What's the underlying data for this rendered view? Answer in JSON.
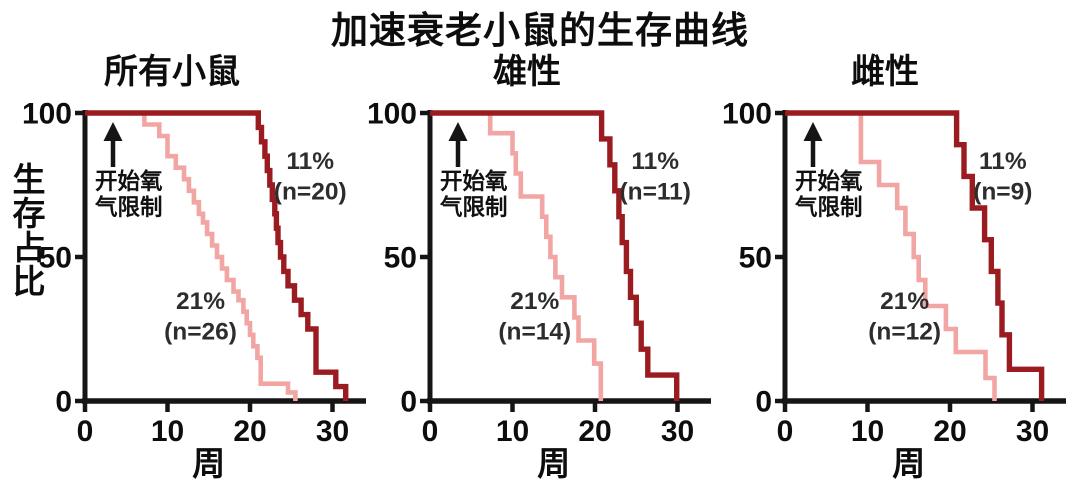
{
  "title": "加速衰老小鼠的生存曲线",
  "y_axis_label": "生存占比",
  "x_axis_label": "周",
  "annotation": {
    "icon": "up-arrow-icon",
    "lines": [
      "开始氧",
      "气限制"
    ]
  },
  "axis": {
    "y_ticks": [
      100,
      50,
      0
    ],
    "x_ticks": [
      0,
      10,
      20,
      30
    ],
    "ylim": [
      0,
      100
    ],
    "xlim": [
      0,
      34
    ],
    "grid": false
  },
  "colors": {
    "dark_red": "#9A1B20",
    "pink": "#F2A6A4",
    "axis_black": "#151515",
    "series_label": "#2d2d2d",
    "background": "#ffffff"
  },
  "chart_data": [
    {
      "type": "line",
      "subtype": "kaplan-meier-survival-step",
      "panel_title": "所有小鼠",
      "xlabel": "周",
      "ylabel": "生存占比",
      "xlim": [
        0,
        34
      ],
      "ylim": [
        0,
        100
      ],
      "series": [
        {
          "name": "21% (n=26)",
          "oxygen_level": "21%",
          "n": 26,
          "label_lines": [
            "21%",
            "(n=26)"
          ],
          "color": "pink",
          "label_week": 14,
          "label_tier": "lower",
          "points_week_pct": [
            [
              0,
              100
            ],
            [
              7.2,
              96
            ],
            [
              9,
              92
            ],
            [
              10,
              85
            ],
            [
              11,
              81
            ],
            [
              12,
              77
            ],
            [
              12.6,
              73
            ],
            [
              13.2,
              69
            ],
            [
              13.8,
              65
            ],
            [
              14.3,
              62
            ],
            [
              14.8,
              58
            ],
            [
              15.4,
              54
            ],
            [
              16,
              50
            ],
            [
              16.6,
              46
            ],
            [
              17.2,
              42
            ],
            [
              18,
              38
            ],
            [
              18.6,
              35
            ],
            [
              19.2,
              31
            ],
            [
              19.6,
              27
            ],
            [
              20,
              23
            ],
            [
              20.4,
              19
            ],
            [
              20.9,
              15
            ],
            [
              21.3,
              6
            ],
            [
              24.6,
              3
            ],
            [
              25.5,
              0
            ]
          ]
        },
        {
          "name": "11% (n=20)",
          "oxygen_level": "11%",
          "n": 20,
          "label_lines": [
            "11%",
            "(n=20)"
          ],
          "color": "dark_red",
          "label_week": 27.3,
          "label_tier": "upper",
          "points_week_pct": [
            [
              0,
              100
            ],
            [
              21,
              95
            ],
            [
              21.4,
              90
            ],
            [
              21.8,
              85
            ],
            [
              22.1,
              80
            ],
            [
              22.4,
              75
            ],
            [
              22.7,
              70
            ],
            [
              23,
              65
            ],
            [
              23.2,
              60
            ],
            [
              23.4,
              55
            ],
            [
              23.7,
              50
            ],
            [
              24.1,
              45
            ],
            [
              24.6,
              40
            ],
            [
              25.4,
              35
            ],
            [
              26.2,
              30
            ],
            [
              27,
              25
            ],
            [
              28,
              10
            ],
            [
              30.4,
              5
            ],
            [
              31.6,
              0
            ]
          ]
        }
      ]
    },
    {
      "type": "line",
      "subtype": "kaplan-meier-survival-step",
      "panel_title": "雄性",
      "xlabel": "周",
      "ylabel": "生存占比",
      "xlim": [
        0,
        34
      ],
      "ylim": [
        0,
        100
      ],
      "series": [
        {
          "name": "21% (n=14)",
          "oxygen_level": "21%",
          "n": 14,
          "label_lines": [
            "21%",
            "(n=14)"
          ],
          "color": "pink",
          "label_week": 12.7,
          "label_tier": "lower",
          "points_week_pct": [
            [
              0,
              100
            ],
            [
              7.3,
              93
            ],
            [
              10,
              86
            ],
            [
              10.4,
              79
            ],
            [
              11,
              71
            ],
            [
              13.6,
              64
            ],
            [
              14.1,
              57
            ],
            [
              14.6,
              50
            ],
            [
              15.2,
              43
            ],
            [
              16,
              36
            ],
            [
              17.5,
              29
            ],
            [
              18,
              21
            ],
            [
              19.9,
              13
            ],
            [
              20.7,
              0
            ]
          ]
        },
        {
          "name": "11% (n=11)",
          "oxygen_level": "11%",
          "n": 11,
          "label_lines": [
            "11%",
            "(n=11)"
          ],
          "color": "dark_red",
          "label_week": 27.3,
          "label_tier": "upper",
          "points_week_pct": [
            [
              0,
              100
            ],
            [
              20.8,
              91
            ],
            [
              21.8,
              82
            ],
            [
              22.4,
              73
            ],
            [
              22.9,
              64
            ],
            [
              23.3,
              55
            ],
            [
              23.8,
              45
            ],
            [
              24.3,
              36
            ],
            [
              25,
              27
            ],
            [
              25.6,
              18
            ],
            [
              26.4,
              9
            ],
            [
              29.9,
              0
            ]
          ]
        }
      ]
    },
    {
      "type": "line",
      "subtype": "kaplan-meier-survival-step",
      "panel_title": "雌性",
      "xlabel": "周",
      "ylabel": "生存占比",
      "xlim": [
        0,
        34
      ],
      "ylim": [
        0,
        100
      ],
      "series": [
        {
          "name": "21% (n=12)",
          "oxygen_level": "21%",
          "n": 12,
          "label_lines": [
            "21%",
            "(n=12)"
          ],
          "color": "pink",
          "label_week": 14.5,
          "label_tier": "lower",
          "points_week_pct": [
            [
              0,
              100
            ],
            [
              9.2,
              83
            ],
            [
              11.4,
              75
            ],
            [
              13.6,
              67
            ],
            [
              14.6,
              58
            ],
            [
              15.6,
              50
            ],
            [
              16.2,
              42
            ],
            [
              17,
              33
            ],
            [
              19.5,
              25
            ],
            [
              20.7,
              17
            ],
            [
              24.3,
              8
            ],
            [
              25.4,
              0
            ]
          ]
        },
        {
          "name": "11% (n=9)",
          "oxygen_level": "11%",
          "n": 9,
          "label_lines": [
            "11%",
            "(n=9)"
          ],
          "color": "dark_red",
          "label_week": 26.4,
          "label_tier": "upper",
          "points_week_pct": [
            [
              0,
              100
            ],
            [
              20.8,
              89
            ],
            [
              21.7,
              78
            ],
            [
              22.7,
              67
            ],
            [
              24.2,
              56
            ],
            [
              25,
              45
            ],
            [
              25.8,
              34
            ],
            [
              26.3,
              23
            ],
            [
              27.2,
              11
            ],
            [
              31.1,
              0
            ]
          ]
        }
      ]
    }
  ]
}
